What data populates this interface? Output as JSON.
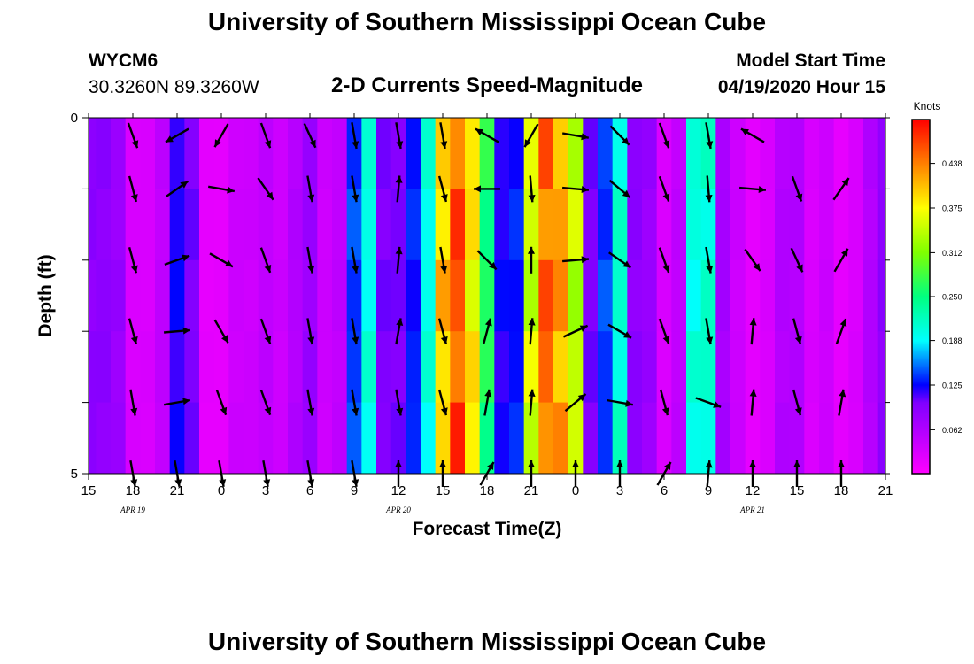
{
  "header": {
    "title": "University of Southern Mississippi Ocean Cube",
    "station_id": "WYCM6",
    "station_coords": "30.3260N 89.3260W",
    "chart_title": "2-D Currents Speed-Magnitude",
    "model_start_label": "Model Start Time",
    "model_start_value": "04/19/2020 Hour 15"
  },
  "footer": {
    "title": "University of Southern Mississippi Ocean Cube"
  },
  "chart_data": {
    "type": "heatmap",
    "title": "2-D Currents Speed-Magnitude",
    "xlabel": "Forecast Time(Z)",
    "ylabel": "Depth (ft)",
    "x_hours": [
      0,
      3,
      6,
      9,
      12,
      15,
      18,
      21,
      24,
      27,
      30,
      33,
      36,
      39,
      42,
      45,
      48,
      51,
      54
    ],
    "x_tick_labels": [
      "15",
      "18",
      "21",
      "0",
      "3",
      "6",
      "9",
      "12",
      "15",
      "18",
      "21",
      "0",
      "3",
      "6",
      "9",
      "12",
      "15",
      "18",
      "21"
    ],
    "x_range_hours": [
      0,
      54
    ],
    "date_labels": [
      {
        "hour": 3,
        "text": "APR 19"
      },
      {
        "hour": 21,
        "text": "APR 20"
      },
      {
        "hour": 45,
        "text": "APR 21"
      }
    ],
    "y_tick_labels": [
      "0",
      "5"
    ],
    "ylim": [
      0,
      5
    ],
    "colorbar": {
      "unit_label": "Knots",
      "tick_labels": [
        "0.438",
        "0.375",
        "0.312",
        "0.250",
        "0.188",
        "0.125",
        "0.062"
      ],
      "tick_values": [
        0.438,
        0.375,
        0.312,
        0.25,
        0.188,
        0.125,
        0.062
      ],
      "vmin": 0.0,
      "vmax": 0.5
    },
    "speed_by_hour": [
      0.09,
      0.09,
      0.08,
      0.03,
      0.03,
      0.05,
      0.12,
      0.1,
      0.02,
      0.02,
      0.04,
      0.04,
      0.05,
      0.04,
      0.06,
      0.08,
      0.04,
      0.05,
      0.14,
      0.2,
      0.1,
      0.1,
      0.13,
      0.2,
      0.4,
      0.46,
      0.38,
      0.26,
      0.12,
      0.13,
      0.35,
      0.45,
      0.42,
      0.34,
      0.1,
      0.14,
      0.21,
      0.09,
      0.08,
      0.03,
      0.05,
      0.2,
      0.21,
      0.07,
      0.04,
      0.02,
      0.03,
      0.06,
      0.06,
      0.03,
      0.04,
      0.02,
      0.03,
      0.06,
      0.09
    ],
    "vector_hours": [
      3,
      6,
      9,
      12,
      15,
      18,
      21,
      24,
      27,
      30,
      33,
      36,
      39,
      42,
      45,
      48,
      51
    ],
    "vector_depths": [
      0.25,
      1.0,
      2.0,
      3.0,
      4.0,
      5.0
    ],
    "vector_angles_deg": [
      [
        -70,
        -150,
        -120,
        -70,
        -65,
        -80,
        -80,
        -80,
        150,
        -120,
        -10,
        -45,
        -70,
        -80,
        150,
        null,
        null
      ],
      [
        -75,
        35,
        -10,
        -55,
        -80,
        -80,
        85,
        -75,
        180,
        -85,
        -5,
        -40,
        -70,
        -85,
        -5,
        -70,
        55
      ],
      [
        -75,
        20,
        -30,
        -70,
        -80,
        -80,
        85,
        -80,
        -45,
        90,
        5,
        -35,
        -70,
        -80,
        -55,
        -65,
        60
      ],
      [
        -75,
        5,
        -60,
        -70,
        -80,
        -80,
        80,
        -75,
        75,
        85,
        25,
        -30,
        -70,
        -80,
        85,
        -75,
        70
      ],
      [
        -80,
        10,
        -70,
        -70,
        -80,
        -80,
        -80,
        -75,
        80,
        85,
        40,
        -10,
        -75,
        -20,
        85,
        -75,
        80
      ],
      [
        -80,
        -80,
        -80,
        -80,
        -80,
        -80,
        90,
        90,
        60,
        90,
        90,
        90,
        60,
        85,
        90,
        90,
        90
      ]
    ]
  }
}
